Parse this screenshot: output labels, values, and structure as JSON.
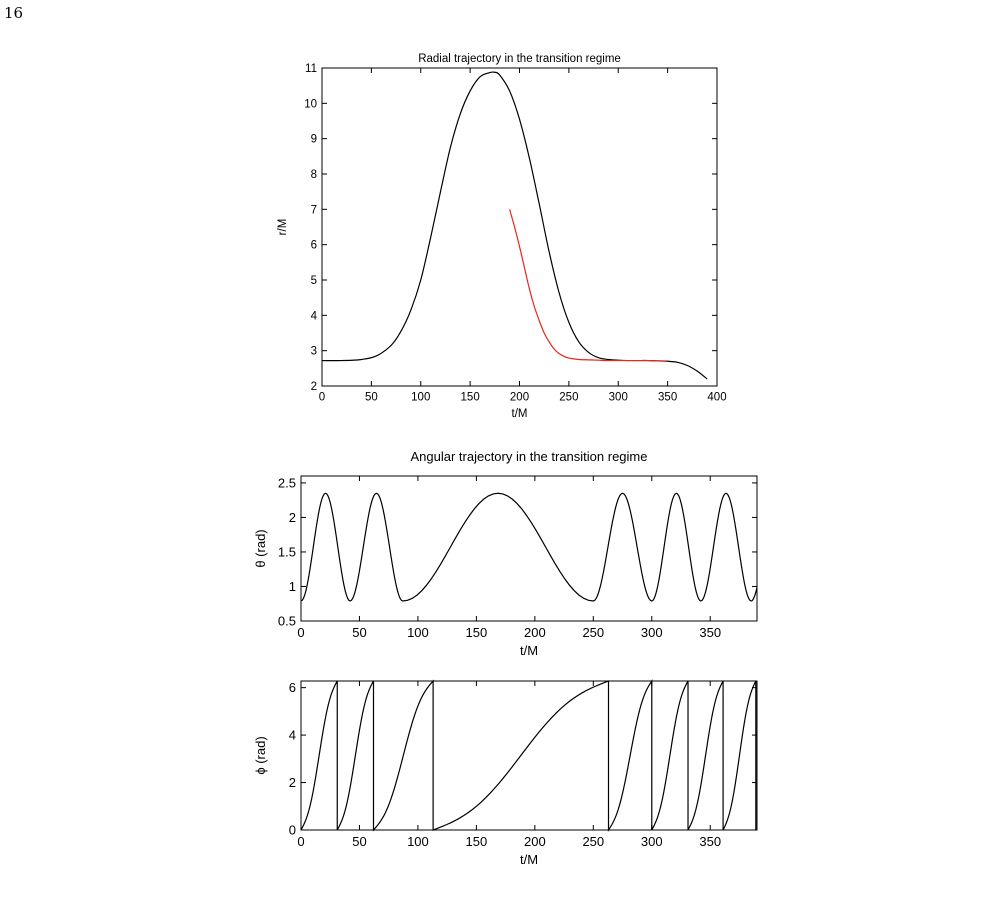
{
  "page": {
    "number": "16"
  },
  "chart_data": [
    {
      "id": "radial",
      "type": "line",
      "title": "Radial trajectory in the transition regime",
      "xlabel": "t/M",
      "ylabel": "r/M",
      "xlim": [
        0,
        400
      ],
      "ylim": [
        2,
        11
      ],
      "xticks": [
        0,
        50,
        100,
        150,
        200,
        250,
        300,
        350,
        400
      ],
      "yticks": [
        2,
        3,
        4,
        5,
        6,
        7,
        8,
        9,
        10,
        11
      ],
      "grid": false,
      "legend": "none",
      "series": [
        {
          "color": "#000000",
          "x": [
            0,
            20,
            40,
            55,
            70,
            80,
            90,
            100,
            110,
            120,
            130,
            140,
            150,
            160,
            170,
            175,
            180,
            190,
            200,
            210,
            220,
            230,
            240,
            250,
            260,
            270,
            280,
            290,
            300,
            310,
            320,
            330,
            340,
            350,
            360,
            370,
            380,
            390
          ],
          "y": [
            2.72,
            2.72,
            2.75,
            2.85,
            3.15,
            3.55,
            4.15,
            5.0,
            6.2,
            7.5,
            8.75,
            9.7,
            10.35,
            10.75,
            10.87,
            10.88,
            10.8,
            10.35,
            9.55,
            8.45,
            7.15,
            5.8,
            4.65,
            3.8,
            3.25,
            2.95,
            2.8,
            2.75,
            2.73,
            2.72,
            2.72,
            2.72,
            2.71,
            2.7,
            2.67,
            2.58,
            2.42,
            2.2
          ]
        },
        {
          "color": "#e8271b",
          "x": [
            190,
            195,
            200,
            205,
            210,
            215,
            220,
            225,
            230,
            235,
            240,
            245,
            250,
            260,
            270,
            280,
            290,
            300,
            310,
            320,
            330,
            340,
            350
          ],
          "y": [
            7.0,
            6.5,
            5.95,
            5.35,
            4.75,
            4.25,
            3.85,
            3.5,
            3.25,
            3.05,
            2.92,
            2.84,
            2.79,
            2.75,
            2.74,
            2.73,
            2.72,
            2.72,
            2.72,
            2.72,
            2.72,
            2.71,
            2.71
          ]
        }
      ]
    },
    {
      "id": "theta",
      "type": "line",
      "title": "Angular trajectory in the transition regime",
      "xlabel": "t/M",
      "ylabel": "θ (rad)",
      "xlim": [
        0,
        390
      ],
      "ylim": [
        0.5,
        2.6
      ],
      "xticks": [
        0,
        50,
        100,
        150,
        200,
        250,
        300,
        350
      ],
      "yticks": [
        0.5,
        1,
        1.5,
        2,
        2.5
      ],
      "ytick_labels": [
        "0.5",
        "1",
        "1.5",
        "2",
        "2.5"
      ],
      "grid": false,
      "legend": "none",
      "minima_t": [
        0,
        42,
        87,
        250,
        300,
        342,
        385
      ],
      "theta_min": 0.79,
      "theta_max": 2.35,
      "segment_ends_t": [
        0,
        42,
        87,
        250,
        300,
        342,
        385,
        390
      ],
      "series": [
        {
          "color": "#000000"
        }
      ]
    },
    {
      "id": "phi",
      "type": "line",
      "title": "",
      "xlabel": "t/M",
      "ylabel": "ϕ (rad)",
      "xlim": [
        0,
        390
      ],
      "ylim": [
        0,
        6.28
      ],
      "xticks": [
        0,
        50,
        100,
        150,
        200,
        250,
        300,
        350
      ],
      "yticks": [
        0,
        2,
        4,
        6
      ],
      "grid": false,
      "legend": "none",
      "wrap_t": [
        0,
        31,
        62,
        113,
        263,
        300,
        331,
        361,
        389
      ],
      "series": [
        {
          "color": "#000000"
        }
      ]
    }
  ]
}
